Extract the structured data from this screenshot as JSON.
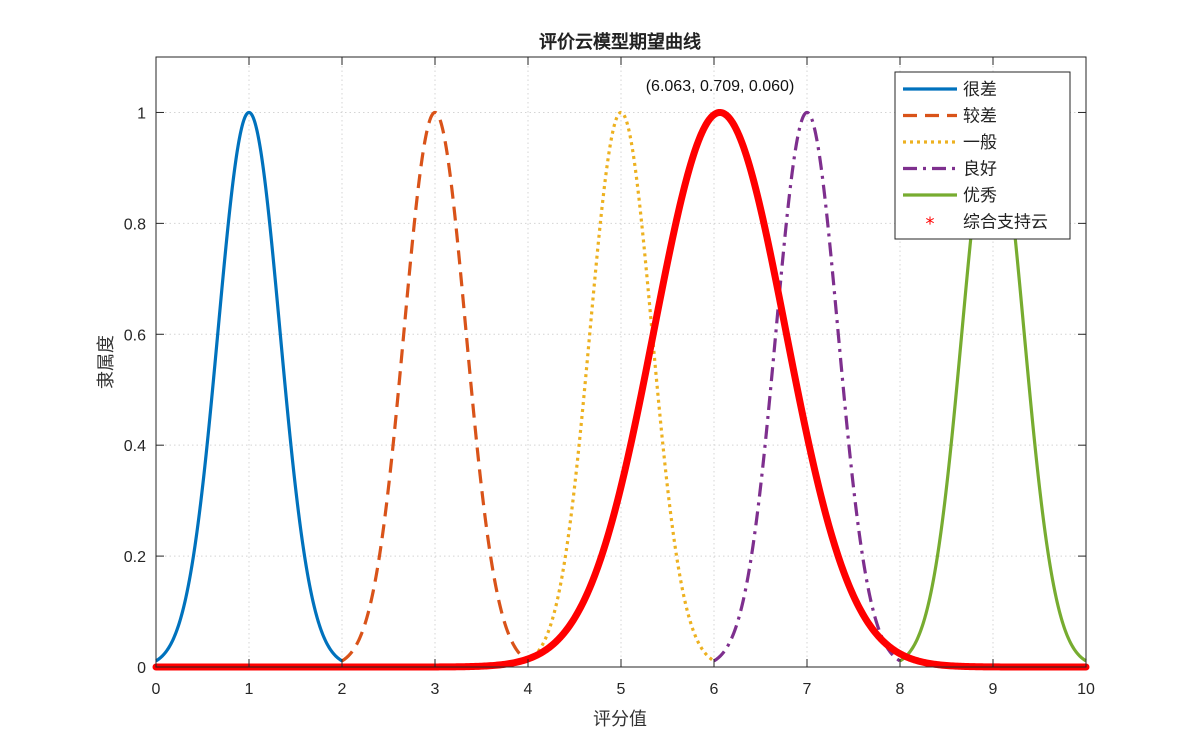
{
  "chart_data": {
    "type": "line",
    "title": "评价云模型期望曲线",
    "xlabel": "评分值",
    "ylabel": "隶属度",
    "xlim": [
      0,
      10
    ],
    "ylim": [
      0,
      1.1
    ],
    "xticks": [
      0,
      1,
      2,
      3,
      4,
      5,
      6,
      7,
      8,
      9,
      10
    ],
    "yticks": [
      0,
      0.2,
      0.4,
      0.6,
      0.8,
      1
    ],
    "ytick_labels": [
      "0",
      "0.2",
      "0.4",
      "0.6",
      "0.8",
      "1"
    ],
    "grid": true,
    "legend_position": "top-right",
    "annotation": {
      "text": "(6.063, 0.709, 0.060)",
      "x": 6.063,
      "y": 1.04
    },
    "series": [
      {
        "name": "很差",
        "Ex": 1,
        "En": 0.333,
        "range": [
          0,
          2
        ],
        "color": "#0072BD",
        "style": "solid"
      },
      {
        "name": "较差",
        "Ex": 3,
        "En": 0.333,
        "range": [
          2,
          4
        ],
        "color": "#D95319",
        "style": "dashed"
      },
      {
        "name": "一般",
        "Ex": 5,
        "En": 0.333,
        "range": [
          4,
          6
        ],
        "color": "#EDB120",
        "style": "dotted"
      },
      {
        "name": "良好",
        "Ex": 7,
        "En": 0.333,
        "range": [
          6,
          8
        ],
        "color": "#7E2F8E",
        "style": "dashdot"
      },
      {
        "name": "优秀",
        "Ex": 9,
        "En": 0.333,
        "range": [
          8,
          10
        ],
        "color": "#77AC30",
        "style": "solid"
      },
      {
        "name": "综合支持云",
        "Ex": 6.063,
        "En": 0.709,
        "He": 0.06,
        "range": [
          0,
          10
        ],
        "color": "#FF0000",
        "style": "markers"
      }
    ]
  }
}
